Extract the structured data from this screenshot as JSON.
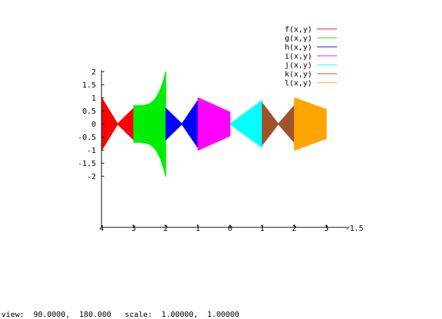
{
  "chart_data": {
    "type": "line",
    "title": "",
    "xlabel": "",
    "ylabel": "",
    "xlim": [
      -4,
      3.5
    ],
    "ylim": [
      -2,
      2
    ],
    "x_ticks": [
      -4,
      -3,
      -2,
      -1,
      0,
      1,
      2,
      3
    ],
    "x_tick_labels": [
      "4",
      "3",
      "2",
      "1",
      "0",
      "1",
      "2",
      "3"
    ],
    "x_extra_label": "-1.5",
    "y_ticks": [
      2,
      1.5,
      1,
      0.5,
      0,
      -0.5,
      -1,
      -1.5,
      -2
    ],
    "y_tick_labels": [
      "2",
      "1.5",
      "1",
      "0.5",
      "0",
      "-0.5",
      "-1",
      "-1.5",
      "-2"
    ],
    "legend_position": "top-right",
    "grid": false,
    "series": [
      {
        "name": "f(x,y)",
        "color": "#ff0000",
        "x_range": [
          -4,
          -3
        ],
        "amplitude_start": 1.0,
        "amplitude_end": 0.6,
        "shape": "bowtie"
      },
      {
        "name": "g(x,y)",
        "color": "#00ee00",
        "x_range": [
          -3,
          -2
        ],
        "amplitude_start": 0.7,
        "amplitude_end": 2.0,
        "shape": "flare"
      },
      {
        "name": "h(x,y)",
        "color": "#0000ff",
        "x_range": [
          -2,
          -1
        ],
        "amplitude_start": 0.6,
        "amplitude_end": 0.9,
        "shape": "bowtie"
      },
      {
        "name": "i(x,y)",
        "color": "#ff00ff",
        "x_range": [
          -1,
          0
        ],
        "amplitude_start": 1.0,
        "amplitude_end": 0.45,
        "shape": "taper"
      },
      {
        "name": "j(x,y)",
        "color": "#00ffff",
        "x_range": [
          0,
          1
        ],
        "amplitude_start": 0.0,
        "amplitude_end": 0.9,
        "shape": "taper"
      },
      {
        "name": "k(x,y)",
        "color": "#a0522d",
        "x_range": [
          1,
          2
        ],
        "amplitude_start": 0.8,
        "amplitude_end": 0.7,
        "shape": "bowtie"
      },
      {
        "name": "l(x,y)",
        "color": "#ffa500",
        "x_range": [
          2,
          3
        ],
        "amplitude_start": 1.0,
        "amplitude_end": 0.55,
        "shape": "taper"
      }
    ]
  },
  "status": {
    "text": "view:  90.0000,  180.000   scale:  1.00000,  1.00000"
  }
}
